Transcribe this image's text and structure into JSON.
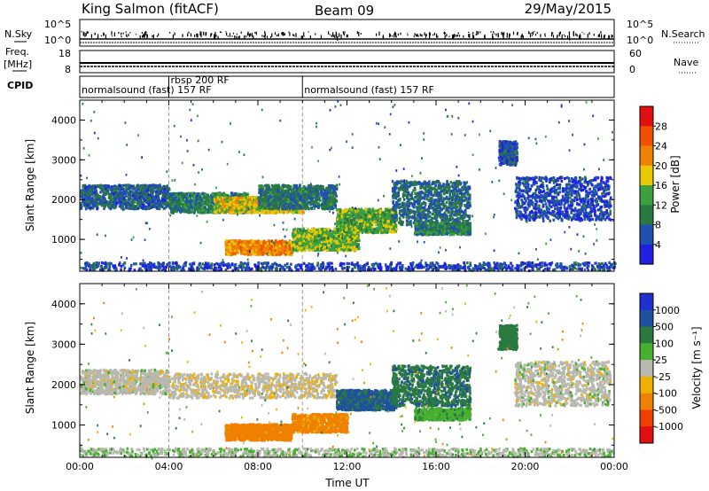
{
  "header": {
    "station": "King Salmon (fitACF)",
    "beam": "Beam 09",
    "date": "29/May/2015"
  },
  "strip_labels": {
    "nsky": "N.Sky",
    "nsearch": "N.Search",
    "freq_line1": "Freq.",
    "freq_line2": "[MHz]",
    "nave": "Nave",
    "cpid": "CPID"
  },
  "strip_ticks": {
    "nsky_left": [
      "10^5",
      "10^0"
    ],
    "nsearch_right": [
      "10^5",
      "10^0"
    ],
    "freq_left": [
      "18",
      "8"
    ],
    "nave_right": [
      "60",
      "0"
    ]
  },
  "cpid": {
    "segments": [
      {
        "start_h": 0.0,
        "end_h": 4.0,
        "label": "normalsound (fast) 157 RF"
      },
      {
        "start_h": 4.0,
        "end_h": 10.0,
        "label": "rbsp 200 RF"
      },
      {
        "start_h": 10.0,
        "end_h": 24.0,
        "label": "normalsound (fast) 157 RF"
      }
    ]
  },
  "colors": {
    "power_scale": [
      "#2020e0",
      "#2050b0",
      "#2a7a40",
      "#3aa040",
      "#e8c800",
      "#f08000",
      "#f05000",
      "#e01010"
    ],
    "velocity_scale": [
      "#2030d0",
      "#2050a0",
      "#2a7a40",
      "#48b030",
      "#b8b8b0",
      "#f0b000",
      "#f08000",
      "#f04000",
      "#e01010"
    ]
  },
  "chart_data": [
    {
      "type": "heatmap",
      "ylabel": "Slant Range [km]",
      "xlim_h": [
        0,
        24
      ],
      "ylim": [
        200,
        4500
      ],
      "y_ticks": [
        1000,
        2000,
        3000,
        4000
      ],
      "y_tick_labels": [
        "1000",
        "2000",
        "3000",
        "4000"
      ],
      "colorbar": {
        "label": "Power [dB]",
        "range": [
          0,
          32
        ],
        "ticks": [
          4,
          8,
          12,
          16,
          20,
          24,
          28
        ],
        "tick_labels": [
          "4",
          "8",
          "12",
          "16",
          "20",
          "24",
          "28"
        ]
      },
      "regions": [
        {
          "t0": 0.0,
          "t1": 4.0,
          "r0": 1800,
          "r1": 2400,
          "v": 7
        },
        {
          "t0": 4.0,
          "t1": 7.5,
          "r0": 1700,
          "r1": 2200,
          "v": 10
        },
        {
          "t0": 6.0,
          "t1": 10.0,
          "r0": 1700,
          "r1": 2100,
          "v": 18
        },
        {
          "t0": 8.0,
          "t1": 11.5,
          "r0": 1800,
          "r1": 2400,
          "v": 9
        },
        {
          "t0": 6.5,
          "t1": 9.5,
          "r0": 650,
          "r1": 1000,
          "v": 22
        },
        {
          "t0": 9.5,
          "t1": 12.5,
          "r0": 750,
          "r1": 1300,
          "v": 15
        },
        {
          "t0": 11.5,
          "t1": 14.2,
          "r0": 1200,
          "r1": 1800,
          "v": 14
        },
        {
          "t0": 14.0,
          "t1": 17.5,
          "r0": 1400,
          "r1": 2500,
          "v": 8
        },
        {
          "t0": 15.0,
          "t1": 17.5,
          "r0": 1150,
          "r1": 1450,
          "v": 10
        },
        {
          "t0": 18.8,
          "t1": 19.6,
          "r0": 2900,
          "r1": 3500,
          "v": 6
        },
        {
          "t0": 19.5,
          "t1": 23.8,
          "r0": 1500,
          "r1": 2600,
          "v": 5
        },
        {
          "t0": 0.0,
          "t1": 24.0,
          "r0": 250,
          "r1": 450,
          "v": 5
        }
      ]
    },
    {
      "type": "heatmap",
      "ylabel": "Slant Range [km]",
      "xlabel": "Time UT",
      "xlim_h": [
        0,
        24
      ],
      "ylim": [
        200,
        4500
      ],
      "x_ticks": [
        0,
        4,
        8,
        12,
        16,
        20,
        24
      ],
      "x_tick_labels": [
        "00:00",
        "04:00",
        "08:00",
        "12:00",
        "16:00",
        "20:00",
        "00:00"
      ],
      "y_ticks": [
        1000,
        2000,
        3000,
        4000
      ],
      "y_tick_labels": [
        "1000",
        "2000",
        "3000",
        "4000"
      ],
      "colorbar": {
        "label": "Velocity [m s⁻¹]",
        "range": [
          -1200,
          1200
        ],
        "ticks": [
          1000,
          500,
          100,
          25,
          -25,
          -100,
          -500,
          -1000
        ],
        "tick_labels": [
          "1000",
          "500",
          "100",
          "25",
          "-25",
          "-100",
          "-500",
          "-1000"
        ]
      },
      "regions": [
        {
          "t0": 0.0,
          "t1": 4.0,
          "r0": 1800,
          "r1": 2400,
          "v": 0
        },
        {
          "t0": 4.0,
          "t1": 11.5,
          "r0": 1700,
          "r1": 2300,
          "v": -10
        },
        {
          "t0": 6.5,
          "t1": 9.5,
          "r0": 650,
          "r1": 1050,
          "v": -200
        },
        {
          "t0": 9.5,
          "t1": 12.0,
          "r0": 850,
          "r1": 1300,
          "v": -150
        },
        {
          "t0": 11.5,
          "t1": 14.2,
          "r0": 1400,
          "r1": 1900,
          "v": 600
        },
        {
          "t0": 14.0,
          "t1": 17.5,
          "r0": 1500,
          "r1": 2500,
          "v": 400
        },
        {
          "t0": 15.0,
          "t1": 17.5,
          "r0": 1150,
          "r1": 1450,
          "v": 80
        },
        {
          "t0": 18.8,
          "t1": 19.6,
          "r0": 2900,
          "r1": 3500,
          "v": 300
        },
        {
          "t0": 19.5,
          "t1": 23.8,
          "r0": 1500,
          "r1": 2600,
          "v": 0
        },
        {
          "t0": 0.0,
          "t1": 24.0,
          "r0": 250,
          "r1": 450,
          "v": 20
        }
      ]
    }
  ]
}
